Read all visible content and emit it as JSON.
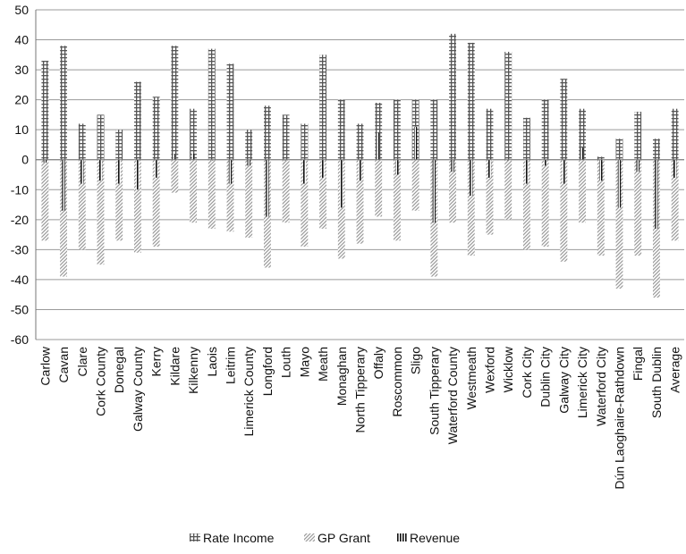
{
  "chart_data": {
    "type": "bar",
    "title": "",
    "xlabel": "",
    "ylabel": "",
    "ylim": [
      -60,
      50
    ],
    "yticks": [
      50,
      40,
      30,
      20,
      10,
      0,
      -10,
      -20,
      -30,
      -40,
      -50,
      -60
    ],
    "grid": true,
    "legend_position": "bottom",
    "categories": [
      "Carlow",
      "Cavan",
      "Clare",
      "Cork County",
      "Donegal",
      "Galway County",
      "Kerry",
      "Kildare",
      "Kilkenny",
      "Laois",
      "Leitrim",
      "Limerick County",
      "Longford",
      "Louth",
      "Mayo",
      "Meath",
      "Monaghan",
      "North Tipperary",
      "Offaly",
      "Roscommon",
      "Sligo",
      "South Tipperary",
      "Waterford County",
      "Westmeath",
      "Wexford",
      "Wicklow",
      "Cork City",
      "Dublin City",
      "Galway City",
      "Limerick City",
      "Waterford City",
      "Dún Laoghaire-Rathdown",
      "Fingal",
      "South Dublin",
      "Average"
    ],
    "series": [
      {
        "name": "Rate Income",
        "color": "#666666",
        "values": [
          33,
          38,
          12,
          15,
          10,
          26,
          21,
          38,
          17,
          37,
          32,
          10,
          18,
          15,
          12,
          35,
          20,
          12,
          19,
          20,
          20,
          20,
          42,
          39,
          17,
          36,
          14,
          20,
          27,
          17,
          1,
          7,
          16,
          7,
          17
        ]
      },
      {
        "name": "GP Grant",
        "color": "#aaaaaa",
        "values": [
          -27,
          -39,
          -30,
          -35,
          -27,
          -31,
          -29,
          -11,
          -21,
          -23,
          -24,
          -26,
          -36,
          -21,
          -29,
          -23,
          -33,
          -28,
          -19,
          -27,
          -17,
          -39,
          -21,
          -32,
          -25,
          -20,
          -30,
          -29,
          -34,
          -21,
          -32,
          -43,
          -32,
          -46,
          -27
        ]
      },
      {
        "name": "Revenue",
        "color": "#222222",
        "values": [
          -1,
          -17,
          -8,
          -7,
          -8,
          -10,
          -6,
          2,
          2,
          0,
          -8,
          -2,
          -19,
          0,
          -8,
          -6,
          -16,
          -7,
          9,
          -5,
          11,
          -21,
          -4,
          -12,
          -6,
          0,
          -8,
          -2,
          -8,
          4,
          -7,
          -16,
          -4,
          -23,
          -6
        ]
      }
    ]
  }
}
